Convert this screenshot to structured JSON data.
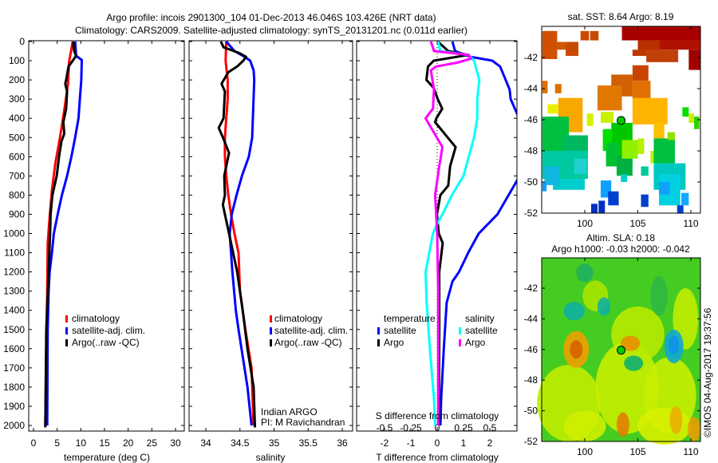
{
  "title": {
    "line1": "Argo profile: incois 2901300_104 01-Dec-2013 46.046S 103.426E (NRT data)",
    "line2": "Climatology: CARS2009. Satellite-adjusted climatology: synTS_20131201.nc (0.011d earlier)"
  },
  "timestamp": "©IMOS 04-Aug-2017 19:37:56",
  "colors": {
    "climatology": "#ff0000",
    "satellite": "#0000ff",
    "argo": "#000000",
    "s_satellite": "#00ffff",
    "s_argo": "#ff00ff"
  },
  "chart_data": [
    {
      "type": "line",
      "title": "",
      "xlabel": "temperature (deg C)",
      "ylabel": "",
      "xlim": [
        -1,
        32
      ],
      "ylim": [
        2050,
        0
      ],
      "xticks": [
        "0",
        "5",
        "10",
        "15",
        "20",
        "25",
        "30"
      ],
      "xtick_values": [
        0,
        5,
        10,
        15,
        20,
        25,
        30
      ],
      "yticks": [
        "0",
        "100",
        "200",
        "300",
        "400",
        "500",
        "600",
        "700",
        "800",
        "900",
        "1000",
        "1100",
        "1200",
        "1300",
        "1400",
        "1500",
        "1600",
        "1700",
        "1800",
        "1900",
        "2000"
      ],
      "legend": [
        "climatology",
        "satellite-adj. clim.",
        "Argo(..raw -QC)"
      ],
      "legend_position": "lower-middle",
      "series": [
        {
          "name": "climatology",
          "color": "#ff0000",
          "depth": [
            0,
            108,
            220,
            357,
            500,
            636,
            774,
            914,
            1052,
            1300,
            1600,
            2000
          ],
          "values": [
            8.3,
            7.5,
            7.3,
            6.5,
            5.6,
            4.6,
            3.9,
            3.4,
            3.0,
            2.9,
            2.7,
            2.5
          ]
        },
        {
          "name": "satellite-adj. clim.",
          "color": "#0000ff",
          "depth": [
            0,
            75,
            96,
            200,
            300,
            400,
            500,
            600,
            700,
            800,
            900,
            1000,
            1100,
            1200,
            1300,
            1500,
            2000
          ],
          "values": [
            8.8,
            9.0,
            10.2,
            10.1,
            9.8,
            9.5,
            8.8,
            8.0,
            7.1,
            6.0,
            5.1,
            4.3,
            3.9,
            3.4,
            3.2,
            3.0,
            2.9
          ]
        },
        {
          "name": "Argo(..raw -QC)",
          "color": "#000000",
          "depth": [
            0,
            50,
            75,
            100,
            130,
            200,
            220,
            260,
            350,
            420,
            480,
            520,
            600,
            700,
            800,
            900,
            1000,
            1200,
            1500,
            2010
          ],
          "values": [
            8.4,
            8.6,
            9.0,
            8.3,
            7.4,
            6.9,
            6.7,
            7.1,
            6.9,
            6.3,
            6.5,
            5.9,
            5.4,
            4.9,
            4.0,
            3.6,
            3.5,
            3.2,
            2.7,
            2.5
          ]
        }
      ]
    },
    {
      "type": "line",
      "xlabel": "salinity",
      "xlim": [
        33.75,
        36.15
      ],
      "ylim": [
        2050,
        0
      ],
      "xticks": [
        "34",
        "34.5",
        "35",
        "35.5",
        "36"
      ],
      "xtick_values": [
        34,
        34.5,
        35,
        35.5,
        36
      ],
      "legend": [
        "climatology",
        "satellite-adj. clim.",
        "Argo(..raw -QC)"
      ],
      "annotations": [
        "Indian ARGO",
        "PI: M Ravichandran"
      ],
      "series": [
        {
          "name": "climatology",
          "color": "#ff0000",
          "depth": [
            0,
            100,
            200,
            300,
            400,
            500,
            600,
            700,
            800,
            900,
            1000,
            1100,
            1300,
            1500,
            1700,
            2000
          ],
          "values": [
            34.3,
            34.29,
            34.32,
            34.32,
            34.3,
            34.28,
            34.28,
            34.3,
            34.33,
            34.37,
            34.42,
            34.48,
            34.5,
            34.58,
            34.67,
            34.7
          ]
        },
        {
          "name": "satellite-adj. clim.",
          "color": "#0000ff",
          "depth": [
            0,
            50,
            80,
            100,
            150,
            200,
            500,
            600,
            700,
            800,
            900,
            1000,
            1100,
            1200,
            1400,
            1500,
            1800,
            2000
          ],
          "values": [
            34.3,
            34.42,
            34.57,
            34.65,
            34.7,
            34.71,
            34.68,
            34.63,
            34.53,
            34.45,
            34.38,
            34.35,
            34.37,
            34.39,
            34.44,
            34.48,
            34.61,
            34.67
          ]
        },
        {
          "name": "Argo(..raw -QC)",
          "color": "#000000",
          "depth": [
            0,
            30,
            60,
            80,
            100,
            130,
            160,
            220,
            260,
            400,
            450,
            500,
            580,
            700,
            800,
            850,
            900,
            1000,
            1100,
            1200,
            1400,
            1600,
            1800,
            2010
          ],
          "values": [
            34.22,
            34.26,
            34.49,
            34.59,
            34.55,
            34.46,
            34.33,
            34.23,
            34.28,
            34.26,
            34.19,
            34.25,
            34.34,
            34.27,
            34.28,
            34.25,
            34.28,
            34.34,
            34.4,
            34.46,
            34.54,
            34.61,
            34.7,
            34.72
          ]
        }
      ]
    },
    {
      "type": "line",
      "xlabel": "T difference from climatology",
      "xlim": [
        -3.05,
        3.05
      ],
      "xticks": [
        "-2",
        "-1",
        "0",
        "1",
        "2"
      ],
      "xtick_values": [
        -2,
        -1,
        0,
        1,
        2
      ],
      "s_axis_label": "S difference from climatology",
      "s_xticks": [
        "-0.5",
        "-0.25",
        "0",
        "0.25",
        "0.5"
      ],
      "s_xtick_values": [
        -0.5,
        -0.25,
        0,
        0.25,
        0.5
      ],
      "ylim": [
        2050,
        0
      ],
      "legend_headers": [
        "temperature",
        "salinity"
      ],
      "legend": [
        "satellite",
        "Argo",
        "satellite",
        "Argo"
      ],
      "series": [
        {
          "name": "temperature satellite",
          "axis": "T",
          "color": "#0000ff",
          "depth": [
            0,
            50,
            80,
            100,
            130,
            250,
            300,
            380,
            500,
            600,
            720,
            900,
            1000,
            1100,
            1200,
            1250,
            1360,
            1600,
            1860,
            2000
          ],
          "values": [
            0.58,
            0.68,
            1.27,
            2.09,
            2.39,
            2.75,
            2.79,
            3.05,
            3.8,
            3.5,
            3.05,
            2.29,
            1.58,
            1.18,
            0.83,
            0.58,
            0.36,
            0.25,
            0.15,
            0.12
          ]
        },
        {
          "name": "temperature Argo",
          "axis": "T",
          "color": "#000000",
          "depth": [
            0,
            50,
            70,
            100,
            130,
            200,
            240,
            300,
            350,
            400,
            420,
            550,
            650,
            750,
            800,
            900,
            1000,
            1050,
            1200,
            1500,
            2000
          ],
          "values": [
            0.02,
            0.42,
            1.18,
            -0.13,
            -0.35,
            -0.41,
            -0.14,
            0.02,
            0.19,
            -0.03,
            -0.08,
            0.7,
            0.49,
            0.42,
            0.12,
            -0.01,
            0.06,
            0.21,
            0.08,
            0.08,
            0.06
          ]
        },
        {
          "name": "salinity satellite",
          "axis": "S",
          "color": "#00ffff",
          "depth": [
            0,
            50,
            70,
            100,
            200,
            300,
            400,
            500,
            600,
            700,
            800,
            900,
            950,
            1000,
            1200,
            1360,
            1600,
            1860,
            2000
          ],
          "values": [
            0.01,
            0.03,
            0.3,
            0.35,
            0.4,
            0.38,
            0.38,
            0.35,
            0.3,
            0.25,
            0.14,
            0.05,
            0.0,
            -0.04,
            -0.11,
            -0.1,
            -0.07,
            -0.03,
            -0.02
          ]
        },
        {
          "name": "salinity Argo",
          "axis": "S",
          "color": "#ff00ff",
          "depth": [
            0,
            50,
            70,
            90,
            110,
            130,
            150,
            250,
            350,
            400,
            550,
            650,
            800,
            900,
            1000,
            1300,
            1600,
            2000
          ],
          "values": [
            -0.06,
            -0.03,
            0.3,
            0.32,
            0.19,
            -0.01,
            -0.06,
            -0.03,
            -0.04,
            -0.11,
            0.05,
            0.02,
            -0.02,
            -0.01,
            0.0,
            0.01,
            0.01,
            0.01
          ]
        }
      ]
    },
    {
      "type": "heatmap",
      "title": "sat. SST: 8.64 Argo: 8.19",
      "xlim": [
        96,
        110.9
      ],
      "ylim": [
        -52,
        -40
      ],
      "xticks": [
        "100",
        "105",
        "110"
      ],
      "xtick_values": [
        100,
        105,
        110
      ],
      "yticks": [
        "-42",
        "-44",
        "-46",
        "-48",
        "-50",
        "-52"
      ],
      "ytick_values": [
        -42,
        -44,
        -46,
        -48,
        -50,
        -52
      ],
      "marker": {
        "lon": 103.426,
        "lat": -46.046
      }
    },
    {
      "type": "heatmap",
      "title": "Altim. SLA: 0.18",
      "subtitle": "Argo h1000: -0.03 h2000: -0.042",
      "xlim": [
        96,
        110.9
      ],
      "ylim": [
        -52,
        -40
      ],
      "xticks": [
        "100",
        "105",
        "110"
      ],
      "xtick_values": [
        100,
        105,
        110
      ],
      "yticks": [
        "-42",
        "-44",
        "-46",
        "-48",
        "-50",
        "-52"
      ],
      "ytick_values": [
        -42,
        -44,
        -46,
        -48,
        -50,
        -52
      ],
      "marker": {
        "lon": 103.426,
        "lat": -46.046
      }
    }
  ]
}
